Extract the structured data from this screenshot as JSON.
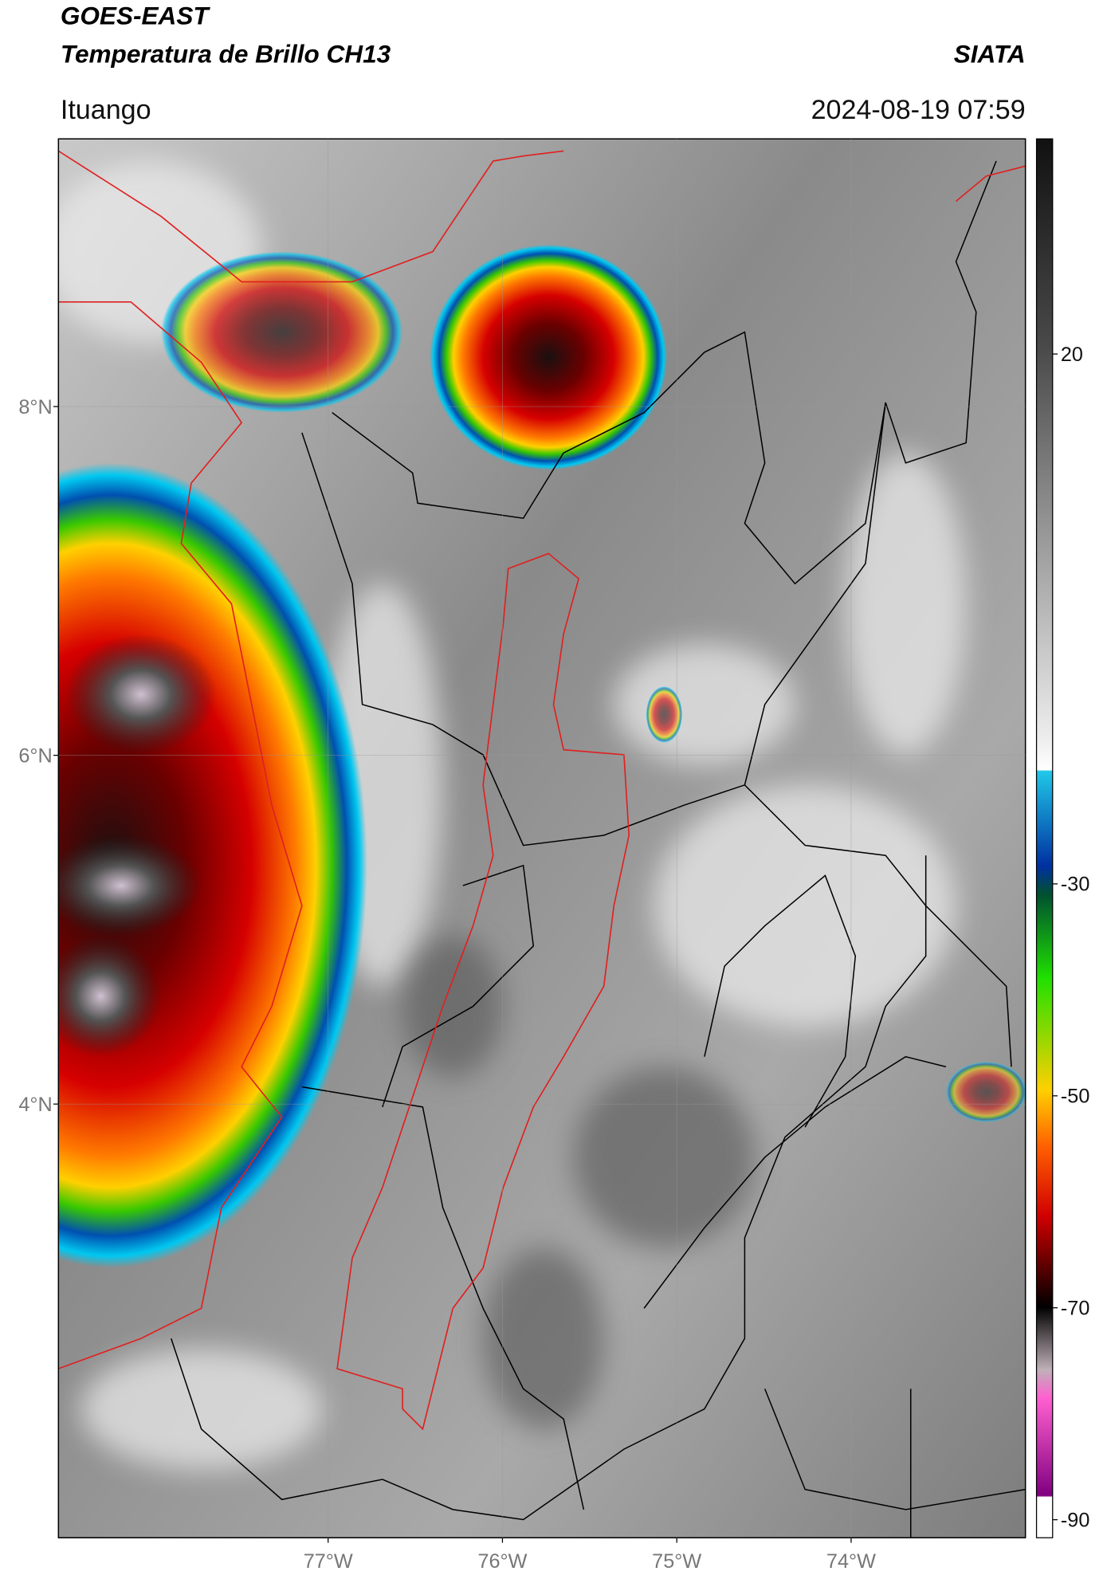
{
  "header": {
    "title": "GOES-EAST",
    "subtitle": "Temperatura de Brillo CH13",
    "brand": "SIATA",
    "location": "Ituango",
    "timestamp": "2024-08-19 07:59"
  },
  "map": {
    "lat_range": [
      1.513,
      9.535
    ],
    "lon_range": [
      -78.547,
      -73.0
    ],
    "lat_ticks": [
      {
        "value": 8,
        "label": "8°N"
      },
      {
        "value": 6,
        "label": "6°N"
      },
      {
        "value": 4,
        "label": "4°N"
      }
    ],
    "lon_ticks": [
      {
        "value": -77,
        "label": "77°W"
      },
      {
        "value": -76,
        "label": "76°W"
      },
      {
        "value": -75,
        "label": "75°W"
      },
      {
        "value": -74,
        "label": "74°W"
      }
    ]
  },
  "colorbar": {
    "range": [
      -91.7,
      40.3
    ],
    "ticks": [
      20,
      -30,
      -50,
      -70,
      -90
    ]
  }
}
